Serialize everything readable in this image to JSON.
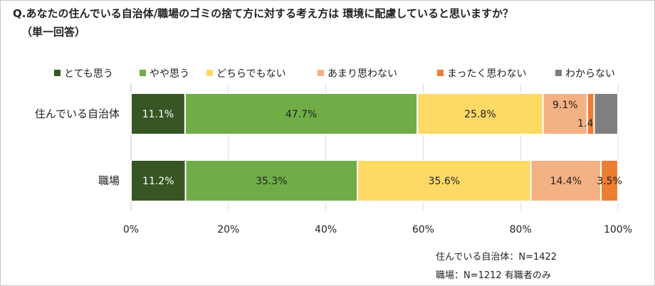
{
  "title": "Q.あなたの住んでいる自治体/職場のゴミの捨て方に対する考え方は 環境に配慮していると思いますか？",
  "subtitle": "（単一回答）",
  "notes": [
    "住んでいる自治体：N=1422",
    "職場：N=1212 有職者のみ"
  ],
  "chart_data": {
    "type": "bar",
    "orientation": "horizontal",
    "stacked": true,
    "categories": [
      "住んでいる自治体",
      "職場"
    ],
    "series": [
      {
        "name": "とても思う",
        "values": [
          11.1,
          11.2
        ],
        "labels": [
          "11.1%",
          "11.2%"
        ],
        "color": "#375623",
        "label_color": "#ffffff"
      },
      {
        "name": "やや思う",
        "values": [
          47.7,
          35.3
        ],
        "labels": [
          "47.7%",
          "35.3%"
        ],
        "color": "#70ad47",
        "label_color": "#222222"
      },
      {
        "name": "どちらでもない",
        "values": [
          25.8,
          35.6
        ],
        "labels": [
          "25.8%",
          "35.6%"
        ],
        "color": "#ffd966",
        "label_color": "#222222"
      },
      {
        "name": "あまり思わない",
        "values": [
          9.1,
          14.4
        ],
        "labels": [
          "9.1%",
          "14.4%"
        ],
        "color": "#f4b183",
        "label_color": "#222222"
      },
      {
        "name": "まったく思わない",
        "values": [
          1.4,
          3.5
        ],
        "labels": [
          "1.4%",
          "3.5%"
        ],
        "color": "#ed7d31",
        "label_color": "#222222"
      },
      {
        "name": "わからない",
        "values": [
          4.9,
          0
        ],
        "labels": [
          "",
          ""
        ],
        "color": "#7f7f7f",
        "label_color": "#222222"
      }
    ],
    "xlim": [
      0,
      100
    ],
    "xticks": [
      "0%",
      "20%",
      "40%",
      "60%",
      "80%",
      "100%"
    ],
    "grid": true,
    "legend": "top"
  }
}
